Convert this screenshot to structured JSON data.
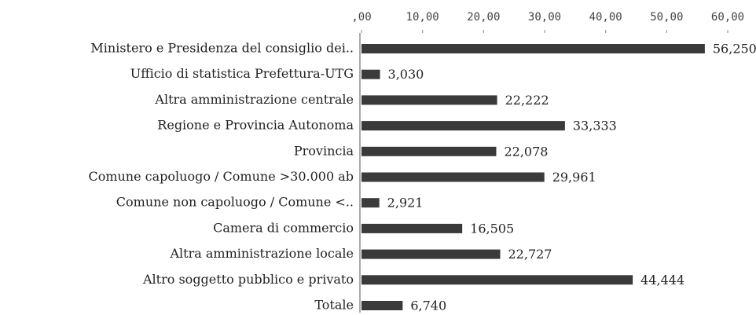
{
  "chart_data": {
    "type": "barh",
    "categories": [
      "Ministero e Presidenza del consiglio dei..",
      "Ufficio di statistica Prefettura-UTG",
      "Altra amministrazione centrale",
      "Regione e Provincia Autonoma",
      "Provincia",
      "Comune capoluogo / Comune >30.000 ab",
      "Comune non capoluogo / Comune <..",
      "Camera di commercio",
      "Altra amministrazione locale",
      "Altro soggetto pubblico e privato",
      "Totale"
    ],
    "values": [
      56.25,
      3.03,
      22.222,
      33.333,
      22.078,
      29.961,
      2.921,
      16.505,
      22.727,
      44.444,
      6.74
    ],
    "value_labels": [
      "56,250",
      "3,030",
      "22,222",
      "33,333",
      "22,078",
      "29,961",
      "2,921",
      "16,505",
      "22,727",
      "44,444",
      "6,740"
    ],
    "color": "#3a3a3a",
    "xlim": [
      0,
      60
    ],
    "xticks": [
      {
        "value": 0,
        "label": ",00"
      },
      {
        "value": 10,
        "label": "10,00"
      },
      {
        "value": 20,
        "label": "20,00"
      },
      {
        "value": 30,
        "label": "30,00"
      },
      {
        "value": 40,
        "label": "40,00"
      },
      {
        "value": 50,
        "label": "50,00"
      },
      {
        "value": 60,
        "label": "60,00"
      }
    ],
    "grid": false
  }
}
